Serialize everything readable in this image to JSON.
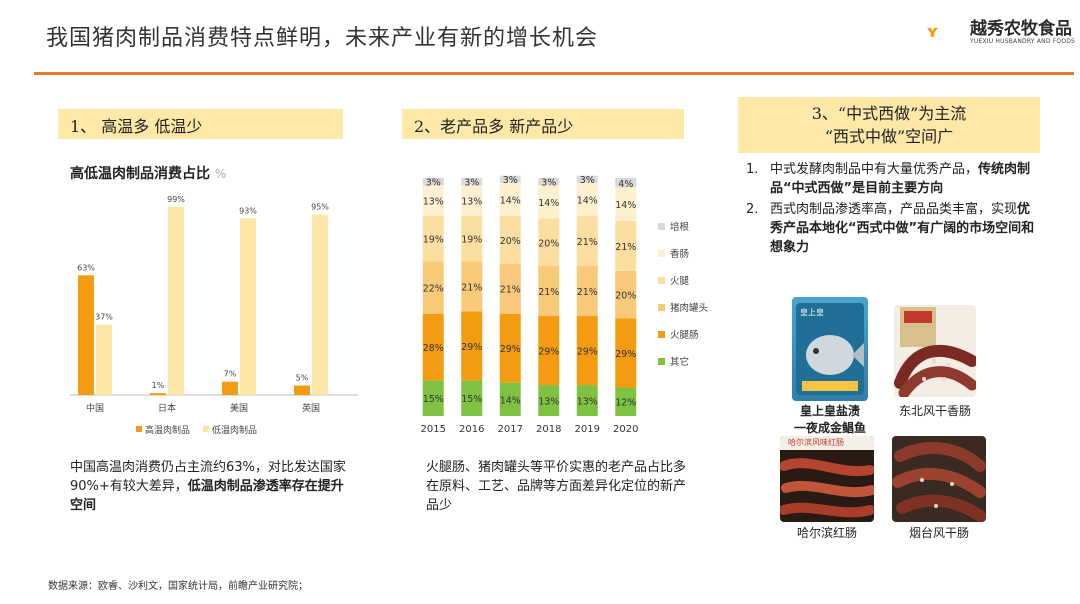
{
  "header": {
    "title": "我国猪肉制品消费特点鲜明，未来产业有新的增长机会",
    "logo_cn": "越秀农牧食品",
    "logo_en": "YUEXIU HUSBANDRY AND FOODS",
    "accent": "#e8762d"
  },
  "section1": {
    "heading": "1、 高温多 低温少",
    "chart_title": "高低温肉制品消费占比",
    "chart_unit": "%",
    "para_plain": "中国高温肉消费仍占主流约63%，对比发达国家90%+有较大差异，",
    "para_bold": "低温肉制品渗透率存在提升空间"
  },
  "section2": {
    "heading": "2、老产品多 新产品少",
    "para_line1": "火腿肠、猪肉罐头等平价实惠的老产品占比多",
    "para_line2": "在原料、工艺、品牌等方面差异化定位的新产品少"
  },
  "section3": {
    "heading_line1": "3、“中式西做”为主流",
    "heading_line2": "“西式中做”空间广",
    "items": [
      {
        "num": "1.",
        "plain": "中式发酵肉制品中有大量优秀产品，",
        "bold": "传统肉制品“中式西做”是目前主要方向"
      },
      {
        "num": "2.",
        "plain": "西式肉制品渗透率高，产品品类丰富，实现",
        "bold": "优秀产品本地化“西式中做”有广阔的市场空间和想象力"
      }
    ],
    "products": [
      {
        "caption_l1": "皇上皇盐渍",
        "caption_l2": "一夜成金鲳鱼",
        "pack_text": "皇上皇"
      },
      {
        "caption_l1": "东北风干香肠",
        "caption_l2": ""
      },
      {
        "caption_l1": "哈尔滨红肠",
        "caption_l2": "",
        "pack_text": "哈尔滨风味红肠"
      },
      {
        "caption_l1": "烟台风干肠",
        "caption_l2": ""
      }
    ]
  },
  "source": "数据来源：欧睿、沙利文，国家统计局，前瞻产业研究院；",
  "chart_data": [
    {
      "type": "bar",
      "title": "高低温肉制品消费占比",
      "ylabel": "%",
      "categories": [
        "中国",
        "日本",
        "美国",
        "英国"
      ],
      "series": [
        {
          "name": "高温肉制品",
          "color": "#f39c12",
          "values": [
            63,
            1,
            7,
            5
          ]
        },
        {
          "name": "低温肉制品",
          "color": "#fde5a6",
          "values": [
            37,
            99,
            93,
            95
          ]
        }
      ],
      "ylim": [
        0,
        100
      ],
      "legend": "bottom",
      "grid": false
    },
    {
      "type": "bar",
      "stacked": true,
      "categories": [
        "2015",
        "2016",
        "2017",
        "2018",
        "2019",
        "2020"
      ],
      "series": [
        {
          "name": "其它",
          "color": "#7fc241",
          "values": [
            15,
            15,
            14,
            13,
            13,
            12
          ]
        },
        {
          "name": "火腿肠",
          "color": "#f39c12",
          "values": [
            28,
            29,
            29,
            29,
            29,
            29
          ]
        },
        {
          "name": "猪肉罐头",
          "color": "#f9c97a",
          "values": [
            22,
            21,
            21,
            21,
            21,
            20
          ]
        },
        {
          "name": "火腿",
          "color": "#fcdfa0",
          "values": [
            19,
            19,
            20,
            20,
            21,
            21
          ]
        },
        {
          "name": "香肠",
          "color": "#fdf0cf",
          "values": [
            13,
            13,
            14,
            14,
            14,
            14
          ]
        },
        {
          "name": "培根",
          "color": "#d9d9d9",
          "values": [
            3,
            3,
            3,
            3,
            3,
            4
          ]
        }
      ],
      "ylim": [
        0,
        100
      ],
      "legend": "right",
      "grid": false
    }
  ]
}
